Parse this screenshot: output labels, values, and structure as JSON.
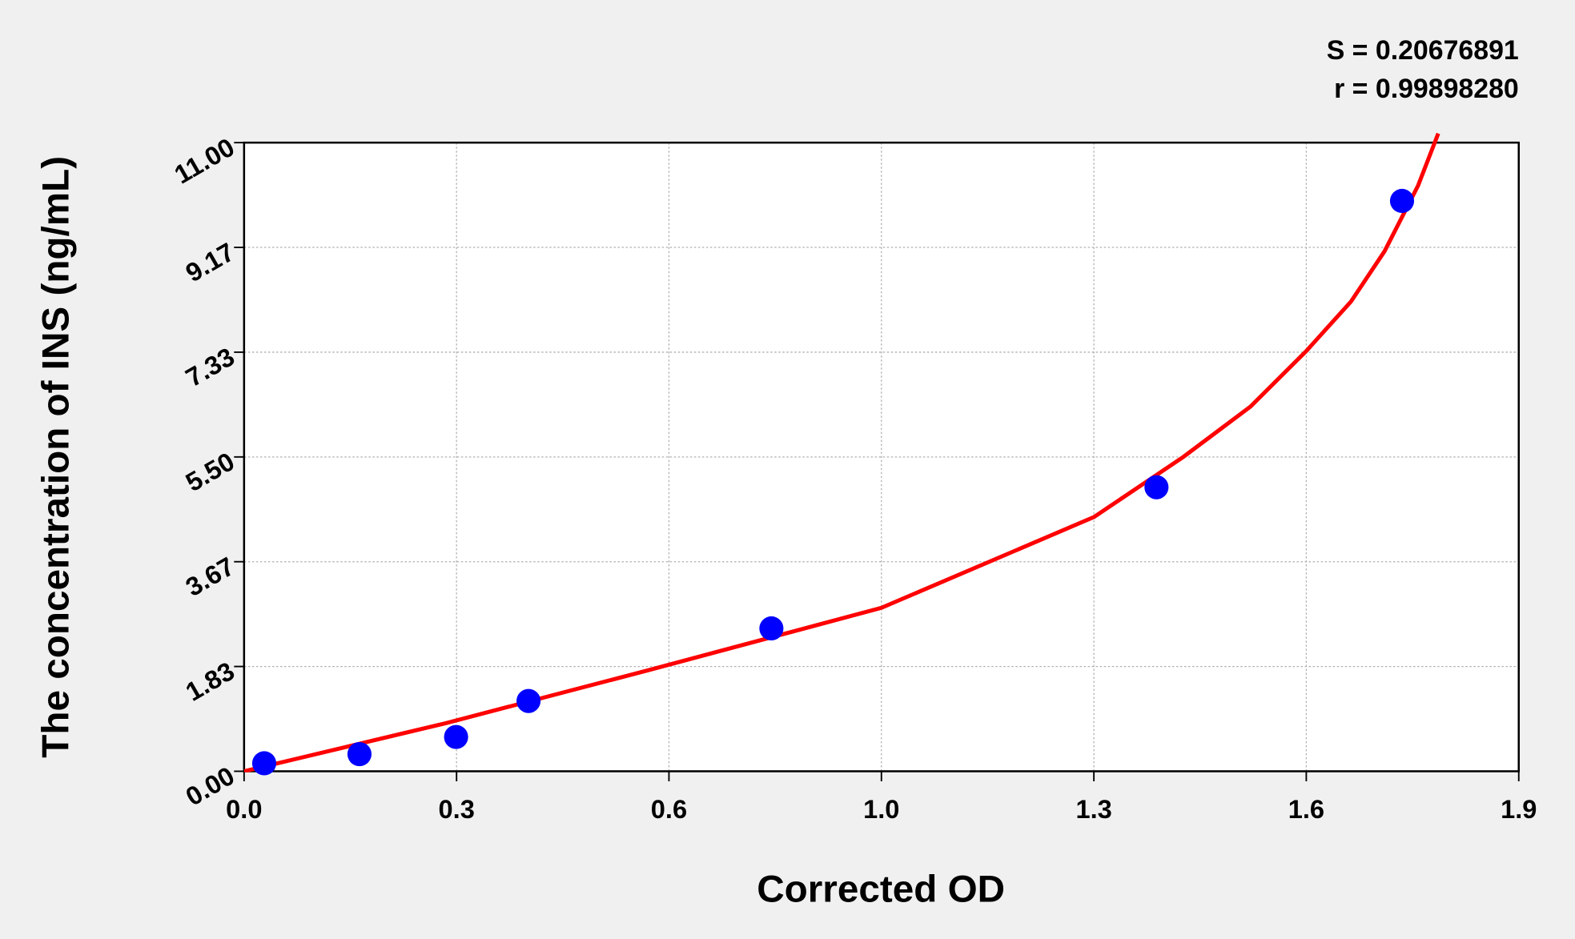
{
  "chart_data": {
    "type": "scatter",
    "annotations": [
      "S = 0.20676891",
      "r = 0.99898280"
    ],
    "x_label": "Corrected OD",
    "y_label": "The concentration of INS (ng/mL)",
    "xlim": [
      0,
      1.9
    ],
    "ylim": [
      0,
      11
    ],
    "xticks": [
      {
        "value": 0,
        "label": "0.0"
      },
      {
        "value": 0.3167,
        "label": "0.3"
      },
      {
        "value": 0.6333,
        "label": "0.6"
      },
      {
        "value": 0.95,
        "label": "1.0"
      },
      {
        "value": 1.2667,
        "label": "1.3"
      },
      {
        "value": 1.5833,
        "label": "1.6"
      },
      1.9
    ],
    "yticks": [
      {
        "value": 0,
        "label": "0.00"
      },
      {
        "value": 1.8333,
        "label": "1.83"
      },
      {
        "value": 3.6667,
        "label": "3.67"
      },
      {
        "value": 5.5,
        "label": "5.50"
      },
      {
        "value": 7.3333,
        "label": "7.33"
      },
      {
        "value": 9.1667,
        "label": "9.17"
      },
      {
        "value": 11,
        "label": "11.00"
      }
    ],
    "grid": true,
    "series": [
      {
        "type": "scatter",
        "color": "#0000ff",
        "x": [
          0.03,
          0.172,
          0.316,
          0.424,
          0.786,
          1.36,
          1.726
        ],
        "values": [
          0.14,
          0.3,
          0.6,
          1.23,
          2.5,
          4.97,
          9.98
        ]
      },
      {
        "type": "line",
        "color": "#ff0000",
        "x": [
          0,
          0.3,
          0.6,
          0.95,
          1.267,
          1.4,
          1.5,
          1.583,
          1.65,
          1.7,
          1.75,
          1.78
        ],
        "values": [
          0,
          0.84,
          1.76,
          2.86,
          4.45,
          5.5,
          6.38,
          7.35,
          8.22,
          9.1,
          10.25,
          11.16
        ]
      }
    ]
  }
}
